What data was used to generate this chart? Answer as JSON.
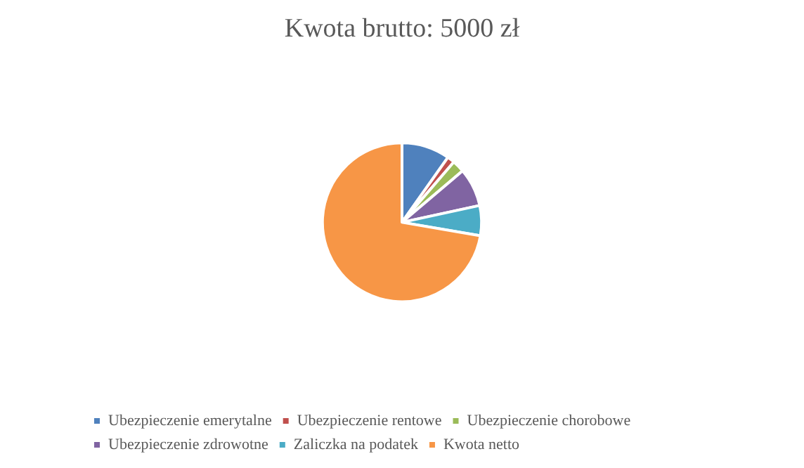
{
  "chart_data": {
    "type": "pie",
    "title": "Kwota brutto: 5000 zł",
    "categories": [
      "Ubezpieczenie emerytalne",
      "Ubezpieczenie rentowe",
      "Ubezpieczenie chorobowe",
      "Ubezpieczenie zdrowotne",
      "Zaliczka na podatek",
      "Kwota netto"
    ],
    "values": [
      9.8,
      1.5,
      2.5,
      7.8,
      6.1,
      72.3
    ],
    "colors": [
      "#4f81bd",
      "#c0504d",
      "#9bbb59",
      "#8064a2",
      "#4bacc6",
      "#f79646"
    ],
    "legend": "bottom"
  }
}
